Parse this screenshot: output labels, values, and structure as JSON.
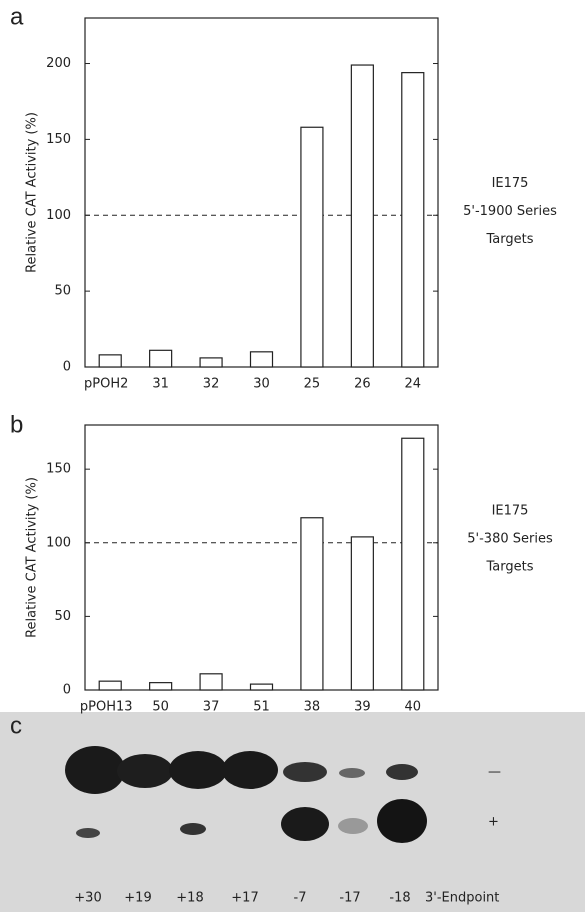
{
  "chart_data": [
    {
      "type": "bar",
      "panel": "a",
      "y_label": "Relative CAT Activity (%)",
      "categories": [
        "pPOH2",
        "31",
        "32",
        "30",
        "25",
        "26",
        "24"
      ],
      "values": [
        8,
        11,
        6,
        10,
        158,
        199,
        194
      ],
      "ylim": [
        0,
        230
      ],
      "yticks": [
        0,
        50,
        100,
        150,
        200
      ],
      "hline": 100,
      "annotation": [
        "IE175",
        "5'-1900 Series",
        "Targets"
      ],
      "color": "#ffffff"
    },
    {
      "type": "bar",
      "panel": "b",
      "y_label": "Relative CAT Activity (%)",
      "categories": [
        "pPOH13",
        "50",
        "37",
        "51",
        "38",
        "39",
        "40"
      ],
      "values": [
        6,
        5,
        11,
        4,
        117,
        104,
        171
      ],
      "ylim": [
        0,
        180
      ],
      "yticks": [
        0,
        50,
        100,
        150
      ],
      "hline": 100,
      "annotation": [
        "IE175",
        "5'-380 Series",
        "Targets"
      ],
      "color": "#ffffff"
    }
  ],
  "gel": {
    "panel": "c",
    "lanes": [
      "+30",
      "+19",
      "+18",
      "+17",
      "-7",
      "-17",
      "-18"
    ],
    "axis_label": "3'-Endpoint",
    "rows": [
      "—",
      "+"
    ]
  }
}
